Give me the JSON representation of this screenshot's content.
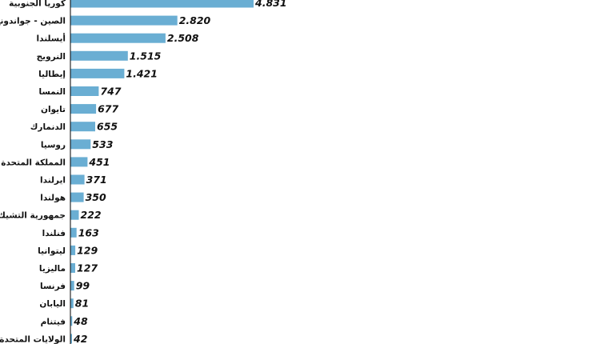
{
  "chart_data": {
    "type": "bar",
    "orientation": "horizontal",
    "title": "",
    "xlabel": "",
    "ylabel": "",
    "categories": [
      "كوريا الجنوبية",
      "الصين - جواندونغ",
      "أيسلندا",
      "النرويج",
      "إيطاليا",
      "النمسا",
      "تايوان",
      "الدنمارك",
      "روسيا",
      "المملكة المتحدة",
      "ايرلندا",
      "هولندا",
      "جمهورية التشيك",
      "فنلندا",
      "ليتوانيا",
      "ماليزيا",
      "فرنسا",
      "اليابان",
      "فيتنام",
      "الولايات المتحدة"
    ],
    "values": [
      4831,
      2820,
      2508,
      1515,
      1421,
      747,
      677,
      655,
      533,
      451,
      371,
      350,
      222,
      163,
      129,
      127,
      99,
      81,
      48,
      42
    ],
    "value_labels": [
      "4.831",
      "2.820",
      "2.508",
      "1.515",
      "1.421",
      "747",
      "677",
      "655",
      "533",
      "451",
      "371",
      "350",
      "222",
      "163",
      "129",
      "127",
      "99",
      "81",
      "48",
      "42"
    ],
    "xlim": [
      0,
      5000
    ],
    "grid": false,
    "legend": "none",
    "bar_color": "#6aaed3",
    "axis_color": "#000000"
  }
}
